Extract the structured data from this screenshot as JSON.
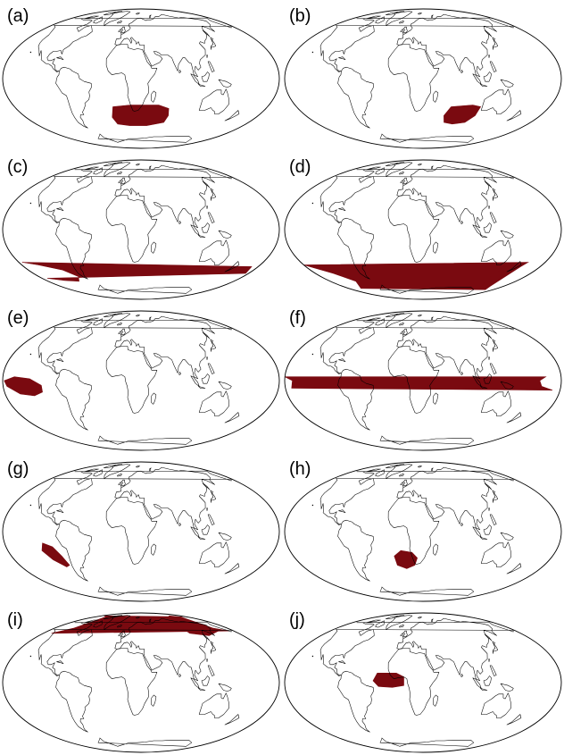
{
  "figure": {
    "projection": "Mollweide",
    "coastline_color": "#000000",
    "highlight_color": "#7a0a10",
    "highlight_dot_color": "#3a1a5a",
    "panels": [
      {
        "label": "(a)",
        "region": "South Atlantic / Southern Ocean south of Africa"
      },
      {
        "label": "(b)",
        "region": "Southern Indian Ocean"
      },
      {
        "label": "(c)",
        "region": "Southeast Pacific near South America"
      },
      {
        "label": "(d)",
        "region": "South Pacific spanning the dateline"
      },
      {
        "label": "(e)",
        "region": "Eastern tropical Pacific"
      },
      {
        "label": "(f)",
        "region": "Central tropical Pacific"
      },
      {
        "label": "(g)",
        "region": "Southeast Pacific off Peru/Chile"
      },
      {
        "label": "(h)",
        "region": "Southeast Atlantic off southwestern Africa"
      },
      {
        "label": "(i)",
        "region": "North Pacific high latitudes"
      },
      {
        "label": "(j)",
        "region": "Equatorial Atlantic"
      }
    ]
  }
}
